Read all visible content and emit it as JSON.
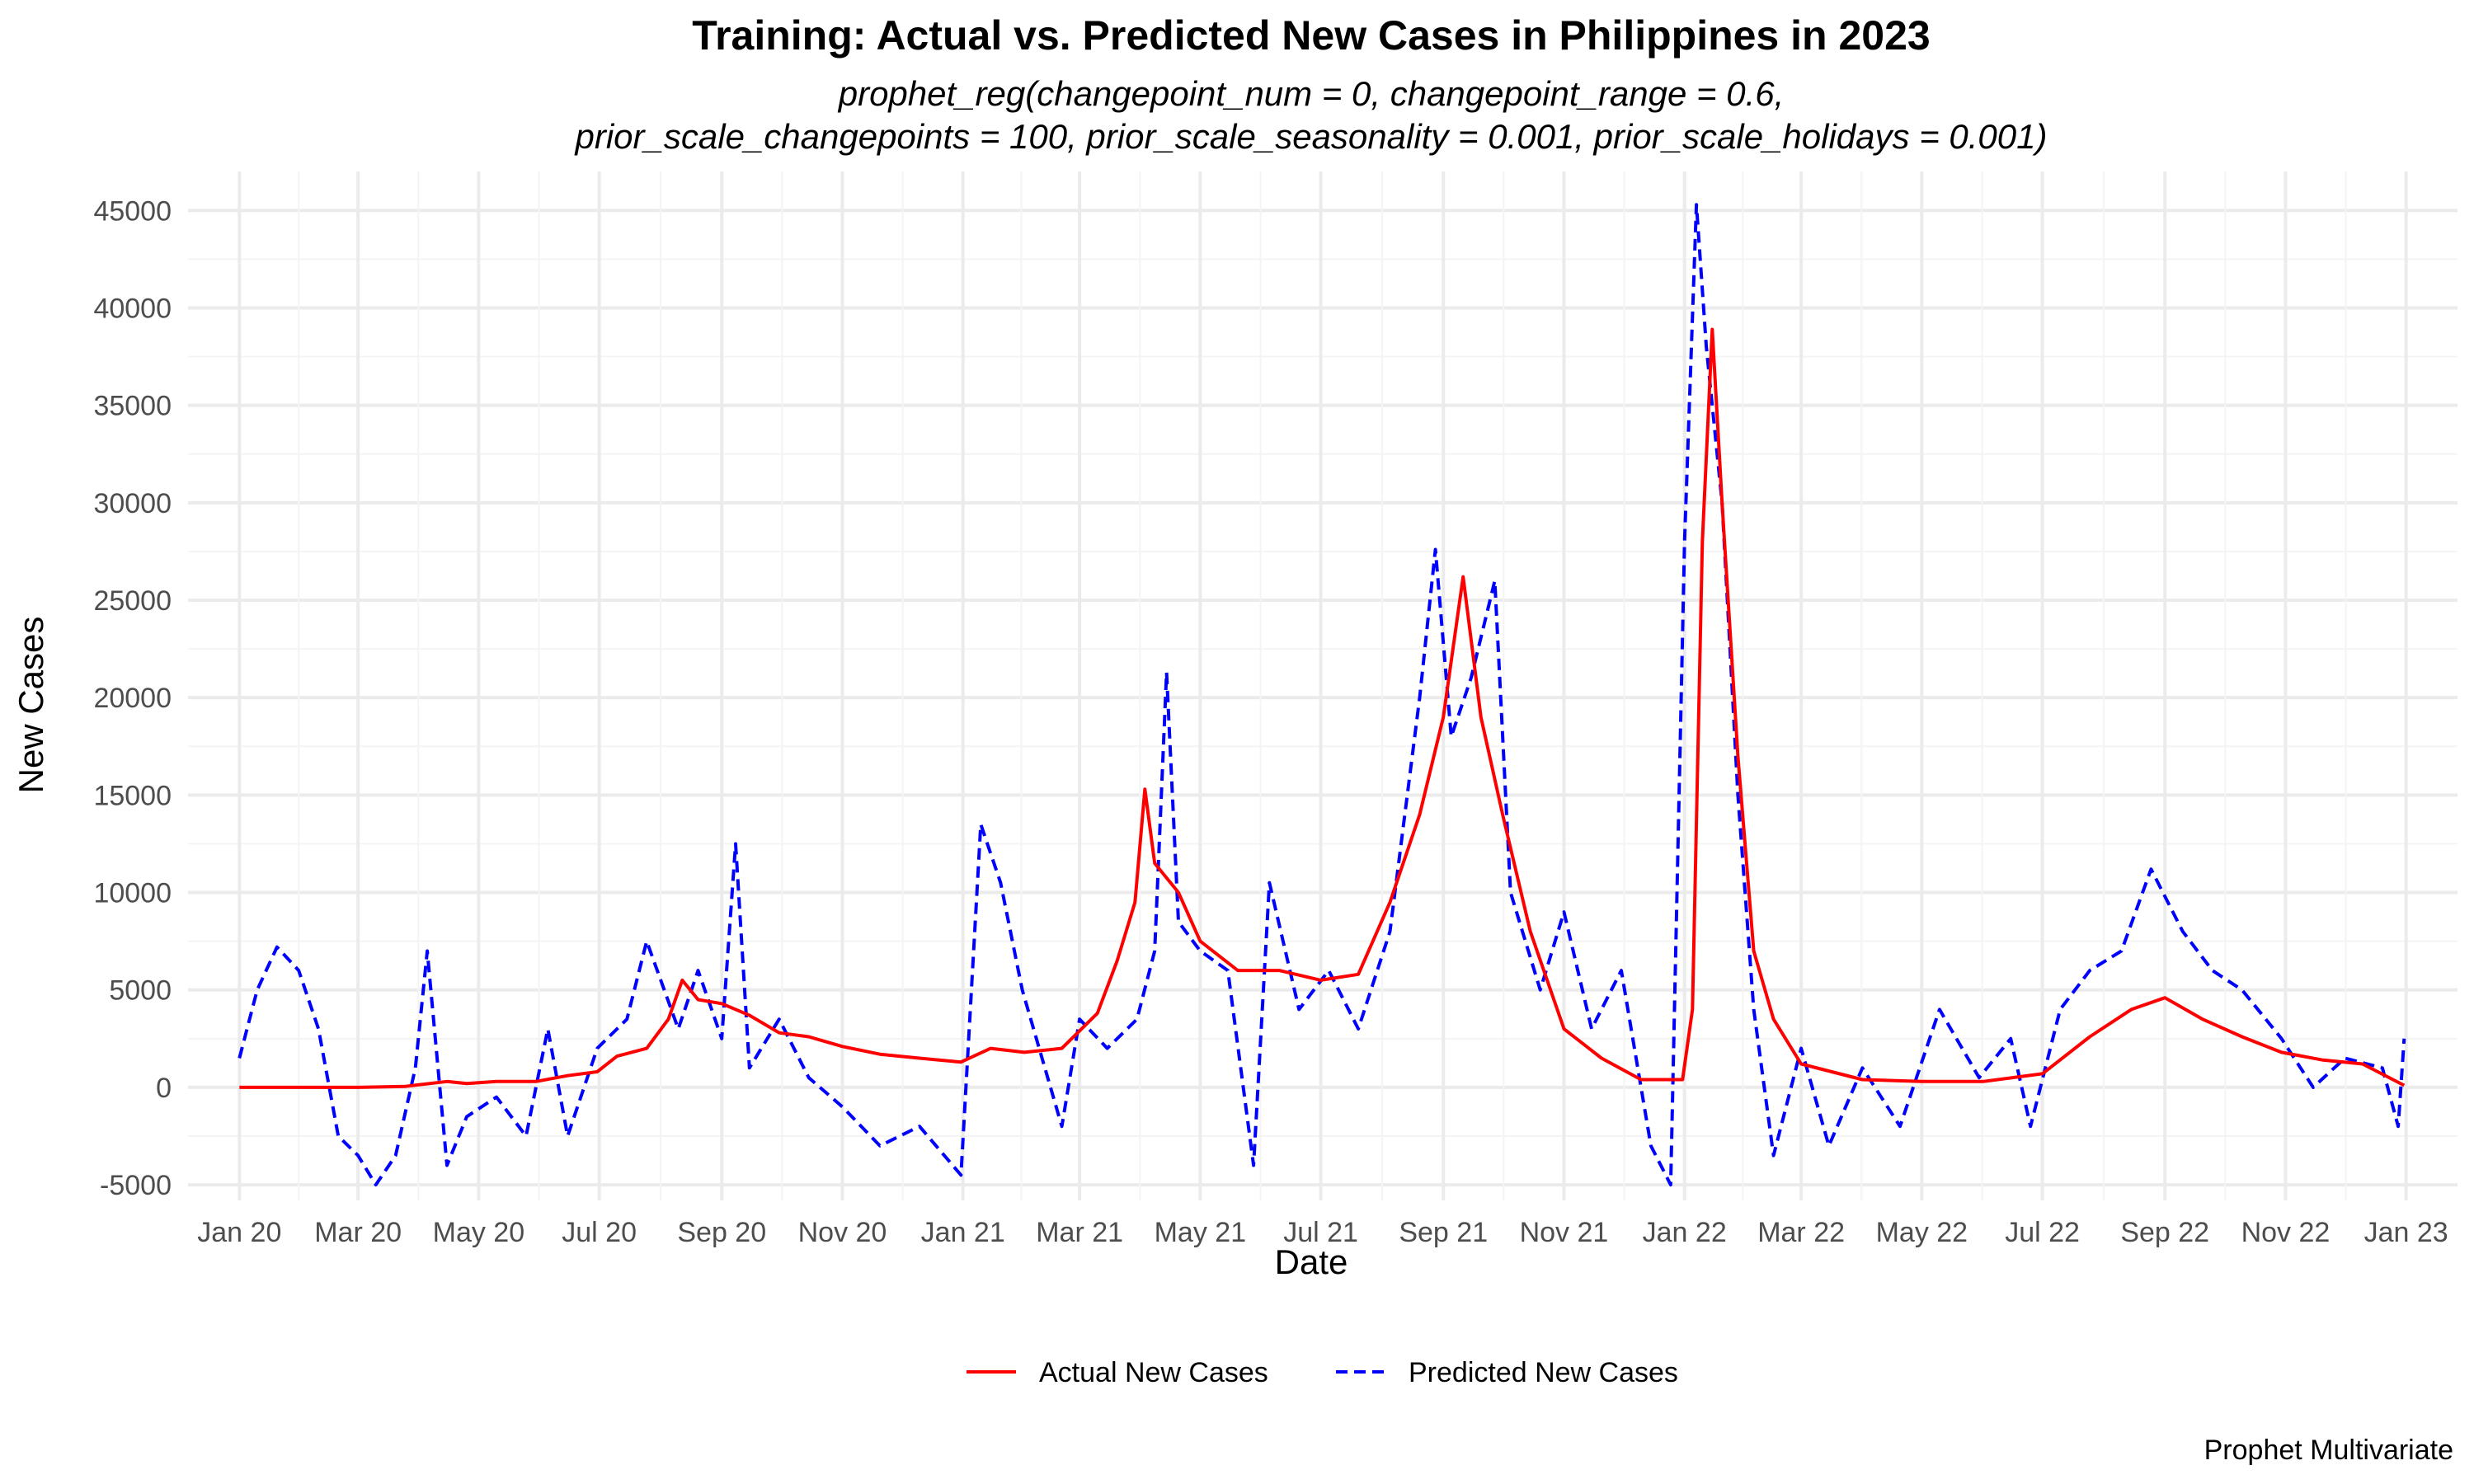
{
  "chart_data": {
    "type": "line",
    "title": "Training: Actual vs. Predicted New Cases in Philippines in 2023",
    "subtitle": [
      "prophet_reg(changepoint_num = 0, changepoint_range = 0.6,",
      "prior_scale_changepoints = 100, prior_scale_seasonality = 0.001, prior_scale_holidays = 0.001)"
    ],
    "xlabel": "Date",
    "ylabel": "New Cases",
    "caption": "Prophet Multivariate",
    "xlim": [
      "2019-12-06",
      "2023-01-27"
    ],
    "ylim": [
      -5800,
      47000
    ],
    "x_ticks": [
      {
        "date": "2020-01-01",
        "label": "Jan 20"
      },
      {
        "date": "2020-03-01",
        "label": "Mar 20"
      },
      {
        "date": "2020-05-01",
        "label": "May 20"
      },
      {
        "date": "2020-07-01",
        "label": "Jul 20"
      },
      {
        "date": "2020-09-01",
        "label": "Sep 20"
      },
      {
        "date": "2020-11-01",
        "label": "Nov 20"
      },
      {
        "date": "2021-01-01",
        "label": "Jan 21"
      },
      {
        "date": "2021-03-01",
        "label": "Mar 21"
      },
      {
        "date": "2021-05-01",
        "label": "May 21"
      },
      {
        "date": "2021-07-01",
        "label": "Jul 21"
      },
      {
        "date": "2021-09-01",
        "label": "Sep 21"
      },
      {
        "date": "2021-11-01",
        "label": "Nov 21"
      },
      {
        "date": "2022-01-01",
        "label": "Jan 22"
      },
      {
        "date": "2022-03-01",
        "label": "Mar 22"
      },
      {
        "date": "2022-05-01",
        "label": "May 22"
      },
      {
        "date": "2022-07-01",
        "label": "Jul 22"
      },
      {
        "date": "2022-09-01",
        "label": "Sep 22"
      },
      {
        "date": "2022-11-01",
        "label": "Nov 22"
      },
      {
        "date": "2023-01-01",
        "label": "Jan 23"
      }
    ],
    "y_ticks": [
      -5000,
      0,
      5000,
      10000,
      15000,
      20000,
      25000,
      30000,
      35000,
      40000,
      45000
    ],
    "legend_position": "bottom",
    "series": [
      {
        "name": "Actual New Cases",
        "color": "#ff0000",
        "style": "solid",
        "points": [
          [
            "2020-01-01",
            0
          ],
          [
            "2020-02-01",
            0
          ],
          [
            "2020-03-01",
            0
          ],
          [
            "2020-03-25",
            50
          ],
          [
            "2020-04-15",
            300
          ],
          [
            "2020-04-25",
            200
          ],
          [
            "2020-05-10",
            300
          ],
          [
            "2020-05-30",
            300
          ],
          [
            "2020-06-15",
            600
          ],
          [
            "2020-06-30",
            800
          ],
          [
            "2020-07-10",
            1600
          ],
          [
            "2020-07-25",
            2000
          ],
          [
            "2020-08-05",
            3500
          ],
          [
            "2020-08-12",
            5500
          ],
          [
            "2020-08-20",
            4500
          ],
          [
            "2020-09-01",
            4300
          ],
          [
            "2020-09-15",
            3700
          ],
          [
            "2020-09-30",
            2800
          ],
          [
            "2020-10-15",
            2600
          ],
          [
            "2020-11-01",
            2100
          ],
          [
            "2020-11-20",
            1700
          ],
          [
            "2020-12-10",
            1500
          ],
          [
            "2020-12-31",
            1300
          ],
          [
            "2021-01-15",
            2000
          ],
          [
            "2021-02-01",
            1800
          ],
          [
            "2021-02-20",
            2000
          ],
          [
            "2021-03-10",
            3800
          ],
          [
            "2021-03-20",
            6500
          ],
          [
            "2021-03-29",
            9500
          ],
          [
            "2021-04-03",
            15300
          ],
          [
            "2021-04-08",
            11500
          ],
          [
            "2021-04-20",
            10000
          ],
          [
            "2021-05-01",
            7500
          ],
          [
            "2021-05-20",
            6000
          ],
          [
            "2021-06-10",
            6000
          ],
          [
            "2021-07-01",
            5500
          ],
          [
            "2021-07-20",
            5800
          ],
          [
            "2021-08-05",
            9500
          ],
          [
            "2021-08-20",
            14000
          ],
          [
            "2021-09-01",
            19000
          ],
          [
            "2021-09-11",
            26200
          ],
          [
            "2021-09-20",
            19000
          ],
          [
            "2021-10-01",
            14000
          ],
          [
            "2021-10-15",
            8000
          ],
          [
            "2021-11-01",
            3000
          ],
          [
            "2021-11-20",
            1500
          ],
          [
            "2021-12-10",
            400
          ],
          [
            "2021-12-31",
            400
          ],
          [
            "2022-01-05",
            4000
          ],
          [
            "2022-01-10",
            28000
          ],
          [
            "2022-01-15",
            38900
          ],
          [
            "2022-01-20",
            30000
          ],
          [
            "2022-01-28",
            17000
          ],
          [
            "2022-02-05",
            7000
          ],
          [
            "2022-02-15",
            3500
          ],
          [
            "2022-03-01",
            1200
          ],
          [
            "2022-04-01",
            400
          ],
          [
            "2022-05-01",
            300
          ],
          [
            "2022-06-01",
            300
          ],
          [
            "2022-07-01",
            700
          ],
          [
            "2022-07-25",
            2600
          ],
          [
            "2022-08-15",
            4000
          ],
          [
            "2022-09-01",
            4600
          ],
          [
            "2022-09-20",
            3500
          ],
          [
            "2022-10-10",
            2600
          ],
          [
            "2022-10-30",
            1800
          ],
          [
            "2022-11-20",
            1400
          ],
          [
            "2022-12-10",
            1200
          ],
          [
            "2022-12-31",
            100
          ]
        ]
      },
      {
        "name": "Predicted New Cases",
        "color": "#0000ff",
        "style": "dashed",
        "points": [
          [
            "2020-01-01",
            1500
          ],
          [
            "2020-01-10",
            5000
          ],
          [
            "2020-01-20",
            7200
          ],
          [
            "2020-01-31",
            6000
          ],
          [
            "2020-02-10",
            3000
          ],
          [
            "2020-02-20",
            -2500
          ],
          [
            "2020-03-01",
            -3500
          ],
          [
            "2020-03-10",
            -5000
          ],
          [
            "2020-03-20",
            -3500
          ],
          [
            "2020-03-30",
            1000
          ],
          [
            "2020-04-05",
            7000
          ],
          [
            "2020-04-15",
            -4000
          ],
          [
            "2020-04-25",
            -1500
          ],
          [
            "2020-05-10",
            -500
          ],
          [
            "2020-05-25",
            -2500
          ],
          [
            "2020-06-05",
            3000
          ],
          [
            "2020-06-15",
            -2500
          ],
          [
            "2020-06-30",
            2000
          ],
          [
            "2020-07-15",
            3500
          ],
          [
            "2020-07-25",
            7500
          ],
          [
            "2020-08-10",
            3000
          ],
          [
            "2020-08-20",
            6000
          ],
          [
            "2020-09-01",
            2500
          ],
          [
            "2020-09-08",
            12500
          ],
          [
            "2020-09-15",
            1000
          ],
          [
            "2020-09-30",
            3500
          ],
          [
            "2020-10-15",
            500
          ],
          [
            "2020-11-01",
            -1000
          ],
          [
            "2020-11-20",
            -3000
          ],
          [
            "2020-12-10",
            -2000
          ],
          [
            "2020-12-31",
            -4500
          ],
          [
            "2021-01-10",
            13500
          ],
          [
            "2021-01-20",
            10500
          ],
          [
            "2021-01-31",
            5000
          ],
          [
            "2021-02-10",
            1500
          ],
          [
            "2021-02-20",
            -2000
          ],
          [
            "2021-03-01",
            3500
          ],
          [
            "2021-03-15",
            2000
          ],
          [
            "2021-03-30",
            3500
          ],
          [
            "2021-04-08",
            7000
          ],
          [
            "2021-04-14",
            21300
          ],
          [
            "2021-04-20",
            8500
          ],
          [
            "2021-05-01",
            7000
          ],
          [
            "2021-05-15",
            6000
          ],
          [
            "2021-05-28",
            -4000
          ],
          [
            "2021-06-05",
            10500
          ],
          [
            "2021-06-20",
            4000
          ],
          [
            "2021-07-05",
            6000
          ],
          [
            "2021-07-20",
            3000
          ],
          [
            "2021-08-05",
            8000
          ],
          [
            "2021-08-20",
            20000
          ],
          [
            "2021-08-28",
            27600
          ],
          [
            "2021-09-05",
            18000
          ],
          [
            "2021-09-15",
            21000
          ],
          [
            "2021-09-27",
            26000
          ],
          [
            "2021-10-05",
            10000
          ],
          [
            "2021-10-20",
            5000
          ],
          [
            "2021-11-01",
            9000
          ],
          [
            "2021-11-15",
            3000
          ],
          [
            "2021-11-30",
            6000
          ],
          [
            "2021-12-15",
            -3000
          ],
          [
            "2021-12-25",
            -5000
          ],
          [
            "2022-01-01",
            28000
          ],
          [
            "2022-01-07",
            45300
          ],
          [
            "2022-01-12",
            38000
          ],
          [
            "2022-01-20",
            30000
          ],
          [
            "2022-01-28",
            15000
          ],
          [
            "2022-02-05",
            4000
          ],
          [
            "2022-02-15",
            -3500
          ],
          [
            "2022-03-01",
            2000
          ],
          [
            "2022-03-15",
            -3000
          ],
          [
            "2022-04-01",
            1000
          ],
          [
            "2022-04-20",
            -2000
          ],
          [
            "2022-05-10",
            4000
          ],
          [
            "2022-05-30",
            500
          ],
          [
            "2022-06-15",
            2500
          ],
          [
            "2022-06-25",
            -2000
          ],
          [
            "2022-07-10",
            4000
          ],
          [
            "2022-07-25",
            6000
          ],
          [
            "2022-08-10",
            7000
          ],
          [
            "2022-08-25",
            11200
          ],
          [
            "2022-09-10",
            8000
          ],
          [
            "2022-09-25",
            6000
          ],
          [
            "2022-10-10",
            5000
          ],
          [
            "2022-10-30",
            2500
          ],
          [
            "2022-11-15",
            0
          ],
          [
            "2022-12-01",
            1500
          ],
          [
            "2022-12-20",
            1000
          ],
          [
            "2022-12-28",
            -2000
          ],
          [
            "2022-12-31",
            2500
          ]
        ]
      }
    ]
  }
}
